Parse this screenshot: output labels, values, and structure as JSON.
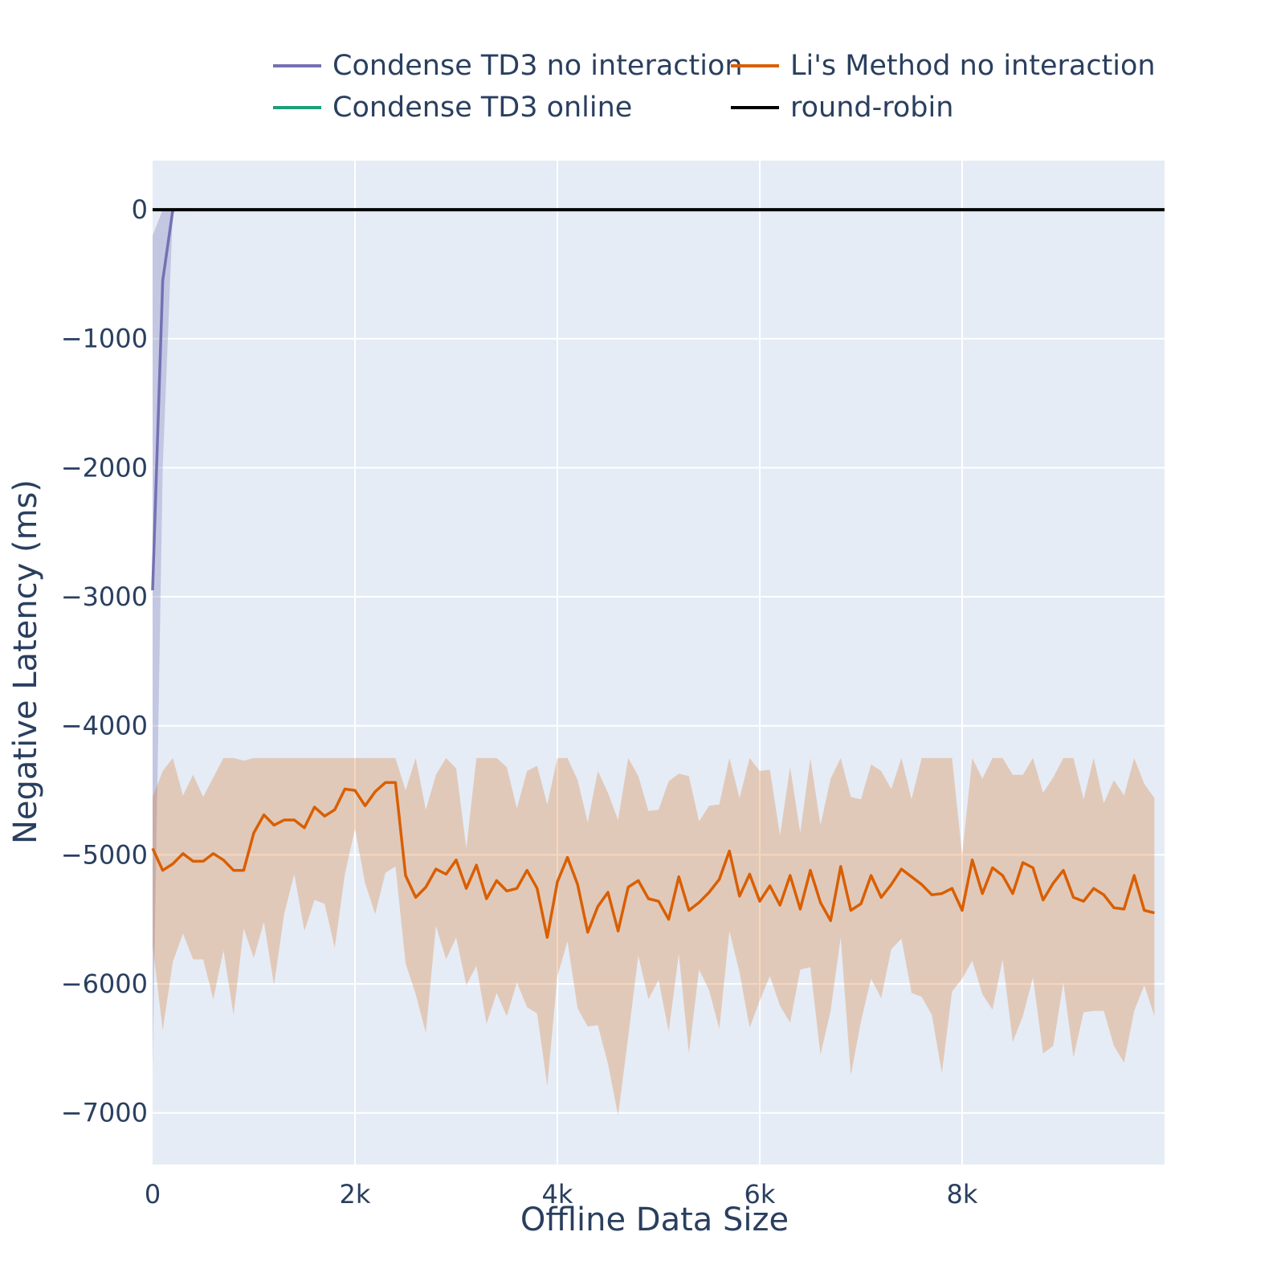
{
  "chart_data": {
    "type": "line",
    "xlabel": "Offline Data Size",
    "ylabel": "Negative Latency (ms)",
    "xlim": [
      0,
      10000
    ],
    "ylim": [
      -7400,
      380
    ],
    "x_ticks": [
      {
        "value": 0,
        "label": "0"
      },
      {
        "value": 2000,
        "label": "2k"
      },
      {
        "value": 4000,
        "label": "4k"
      },
      {
        "value": 6000,
        "label": "6k"
      },
      {
        "value": 8000,
        "label": "8k"
      }
    ],
    "y_ticks": [
      {
        "value": 0,
        "label": "0"
      },
      {
        "value": -1000,
        "label": "−1000"
      },
      {
        "value": -2000,
        "label": "−2000"
      },
      {
        "value": -3000,
        "label": "−3000"
      },
      {
        "value": -4000,
        "label": "−4000"
      },
      {
        "value": -5000,
        "label": "−5000"
      },
      {
        "value": -6000,
        "label": "−6000"
      },
      {
        "value": -7000,
        "label": "−7000"
      }
    ],
    "grid": true,
    "legend_position": "top",
    "series": [
      {
        "name": "Condense TD3 no interaction",
        "color": "#7570b3",
        "band_color": "rgba(117,112,179,0.3)",
        "x": [
          0,
          100,
          200,
          300,
          400
        ],
        "y": [
          -2950,
          -550,
          0,
          0,
          0
        ],
        "y_upper": [
          -200,
          0,
          0,
          0,
          0
        ],
        "y_lower": [
          -6650,
          -2000,
          -20,
          0,
          0
        ]
      },
      {
        "name": "Li's Method no interaction",
        "color": "#d95f02",
        "band_color": "rgba(217,95,2,0.25)",
        "x": [
          0,
          100,
          200,
          300,
          400,
          500,
          600,
          700,
          800,
          900,
          1000,
          1100,
          1200,
          1300,
          1400,
          1500,
          1600,
          1700,
          1800,
          1900,
          2000,
          2100,
          2200,
          2300,
          2400,
          2500,
          2600,
          2700,
          2800,
          2900,
          3000,
          3100,
          3200,
          3300,
          3400,
          3500,
          3600,
          3700,
          3800,
          3900,
          4000,
          4100,
          4200,
          4300,
          4400,
          4500,
          4600,
          4700,
          4800,
          4900,
          5000,
          5100,
          5200,
          5300,
          5400,
          5500,
          5600,
          5700,
          5800,
          5900,
          6000,
          6100,
          6200,
          6300,
          6400,
          6500,
          6600,
          6700,
          6800,
          6900,
          7000,
          7100,
          7200,
          7300,
          7400,
          7500,
          7600,
          7700,
          7800,
          7900,
          8000,
          8100,
          8200,
          8300,
          8400,
          8500,
          8600,
          8700,
          8800,
          8900,
          9000,
          9100,
          9200,
          9300,
          9400,
          9500,
          9600,
          9700,
          9800,
          9900
        ],
        "y": [
          -4950,
          -5120,
          -5070,
          -4990,
          -5050,
          -5050,
          -4990,
          -5040,
          -5120,
          -5120,
          -4830,
          -4690,
          -4770,
          -4730,
          -4730,
          -4790,
          -4630,
          -4700,
          -4650,
          -4490,
          -4500,
          -4620,
          -4510,
          -4440,
          -4440,
          -5160,
          -5330,
          -5250,
          -5110,
          -5150,
          -5040,
          -5260,
          -5080,
          -5340,
          -5200,
          -5280,
          -5260,
          -5120,
          -5260,
          -5640,
          -5210,
          -5020,
          -5230,
          -5600,
          -5400,
          -5290,
          -5590,
          -5250,
          -5200,
          -5340,
          -5360,
          -5500,
          -5170,
          -5430,
          -5370,
          -5290,
          -5190,
          -4970,
          -5320,
          -5150,
          -5360,
          -5240,
          -5390,
          -5160,
          -5420,
          -5120,
          -5370,
          -5510,
          -5090,
          -5430,
          -5380,
          -5160,
          -5330,
          -5230,
          -5110,
          -5170,
          -5230,
          -5310,
          -5300,
          -5260,
          -5430,
          -5040,
          -5300,
          -5100,
          -5160,
          -5300,
          -5060,
          -5100,
          -5350,
          -5220,
          -5120,
          -5330,
          -5360,
          -5260,
          -5310,
          -5410,
          -5420,
          -5160,
          -5430,
          -5450
        ],
        "y_upper": [
          -4550,
          -4350,
          -4250,
          -4540,
          -4380,
          -4550,
          -4400,
          -4250,
          -4250,
          -4270,
          -4250,
          -4250,
          -4250,
          -4250,
          -4250,
          -4250,
          -4250,
          -4250,
          -4250,
          -4250,
          -4250,
          -4250,
          -4250,
          -4250,
          -4250,
          -4500,
          -4250,
          -4650,
          -4380,
          -4250,
          -4330,
          -4950,
          -4250,
          -4250,
          -4250,
          -4320,
          -4640,
          -4350,
          -4310,
          -4610,
          -4250,
          -4250,
          -4420,
          -4750,
          -4350,
          -4520,
          -4730,
          -4250,
          -4390,
          -4660,
          -4650,
          -4430,
          -4370,
          -4390,
          -4740,
          -4620,
          -4610,
          -4250,
          -4560,
          -4250,
          -4350,
          -4340,
          -4850,
          -4320,
          -4830,
          -4250,
          -4770,
          -4410,
          -4250,
          -4550,
          -4570,
          -4300,
          -4350,
          -4490,
          -4250,
          -4570,
          -4250,
          -4250,
          -4250,
          -4250,
          -5000,
          -4250,
          -4410,
          -4250,
          -4250,
          -4380,
          -4380,
          -4250,
          -4520,
          -4400,
          -4250,
          -4250,
          -4570,
          -4250,
          -4600,
          -4420,
          -4540,
          -4250,
          -4450,
          -4560
        ],
        "y_lower": [
          -5700,
          -6360,
          -5830,
          -5610,
          -5810,
          -5810,
          -6120,
          -5740,
          -6240,
          -5570,
          -5800,
          -5520,
          -6010,
          -5460,
          -5150,
          -5590,
          -5350,
          -5380,
          -5720,
          -5150,
          -4800,
          -5220,
          -5460,
          -5140,
          -5090,
          -5840,
          -6080,
          -6380,
          -5550,
          -5810,
          -5640,
          -6010,
          -5860,
          -6310,
          -6070,
          -6250,
          -5990,
          -6180,
          -6230,
          -6790,
          -5940,
          -5670,
          -6190,
          -6330,
          -6320,
          -6620,
          -7020,
          -6410,
          -5780,
          -6120,
          -5970,
          -6370,
          -5770,
          -6540,
          -5890,
          -6050,
          -6350,
          -5590,
          -5910,
          -6340,
          -6130,
          -5940,
          -6170,
          -6300,
          -5890,
          -5870,
          -6550,
          -6210,
          -5640,
          -6710,
          -6290,
          -5960,
          -6110,
          -5730,
          -5650,
          -6070,
          -6100,
          -6240,
          -6690,
          -6060,
          -5960,
          -5820,
          -6080,
          -6200,
          -5810,
          -6450,
          -6250,
          -5950,
          -6540,
          -6480,
          -5990,
          -6570,
          -6220,
          -6210,
          -6210,
          -6480,
          -6610,
          -6210,
          -6010,
          -6250
        ]
      },
      {
        "name": "Condense TD3 online",
        "color": "#1b9e77",
        "x": [
          0,
          10000
        ],
        "y": [
          0,
          0
        ]
      },
      {
        "name": "round-robin",
        "color": "#000000",
        "x": [
          0,
          10000
        ],
        "y": [
          0,
          0
        ]
      }
    ],
    "legend": [
      {
        "name": "Condense TD3 no interaction",
        "color": "#7570b3"
      },
      {
        "name": "Li's Method no interaction",
        "color": "#d95f02"
      },
      {
        "name": "Condense TD3 online",
        "color": "#1b9e77"
      },
      {
        "name": "round-robin",
        "color": "#000000"
      }
    ],
    "plot_background": "#e5ecf6",
    "grid_color": "#ffffff",
    "text_color": "#2a3f5f"
  }
}
